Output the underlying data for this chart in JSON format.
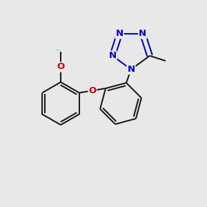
{
  "bg_color": "#e8e8e8",
  "bond_color": "#1a1a1a",
  "bond_width": 1.5,
  "N_color": "#0000cc",
  "O_color": "#cc0000",
  "font_size_atom": 9.5,
  "fig_width": 3.0,
  "fig_height": 3.0,
  "dpi": 100,
  "xlim": [
    0,
    3.0
  ],
  "ylim": [
    0,
    3.0
  ]
}
